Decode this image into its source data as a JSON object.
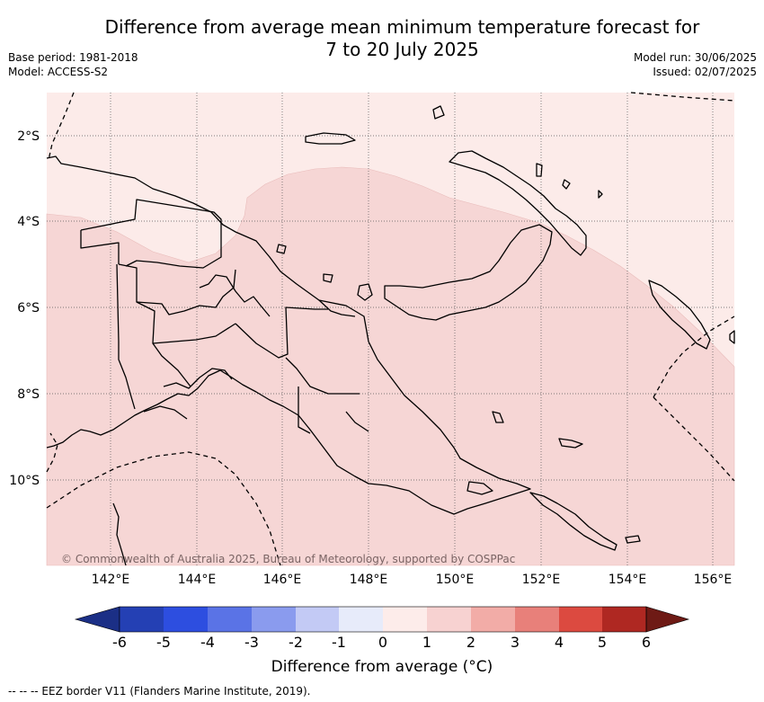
{
  "title_line1": "Difference from average mean minimum temperature forecast for",
  "title_line2": "7 to 20 July 2025",
  "base_period": "Base period: 1981-2018",
  "model": "Model: ACCESS-S2",
  "model_run": "Model run: 30/06/2025",
  "issued": "Issued: 02/07/2025",
  "lat_labels": [
    "2°S",
    "4°S",
    "6°S",
    "8°S",
    "10°S"
  ],
  "lon_labels": [
    "142°E",
    "144°E",
    "146°E",
    "148°E",
    "150°E",
    "152°E",
    "154°E",
    "156°E"
  ],
  "copyright": "© Commonwealth of Australia 2025, Bureau of Meteorology, supported by COSPPac",
  "colorbar": {
    "ticks": [
      "-6",
      "-5",
      "-4",
      "-3",
      "-2",
      "-1",
      "0",
      "1",
      "2",
      "3",
      "4",
      "5",
      "6"
    ],
    "colors": [
      "#1b2f86",
      "#2440b4",
      "#2d4ee0",
      "#5a73e6",
      "#8a9bee",
      "#c3caf5",
      "#e7ebfa",
      "#fdecea",
      "#f7d2d1",
      "#f2aca7",
      "#e8807a",
      "#dc4a40",
      "#af2822",
      "#6e1a15"
    ],
    "title": "Difference from average (°C)"
  },
  "region_colors": {
    "pale": "#fcebe9",
    "light": "#f6d6d5"
  },
  "footnote": "-- -- -- EEZ border V11 (Flanders Marine Institute, 2019)."
}
